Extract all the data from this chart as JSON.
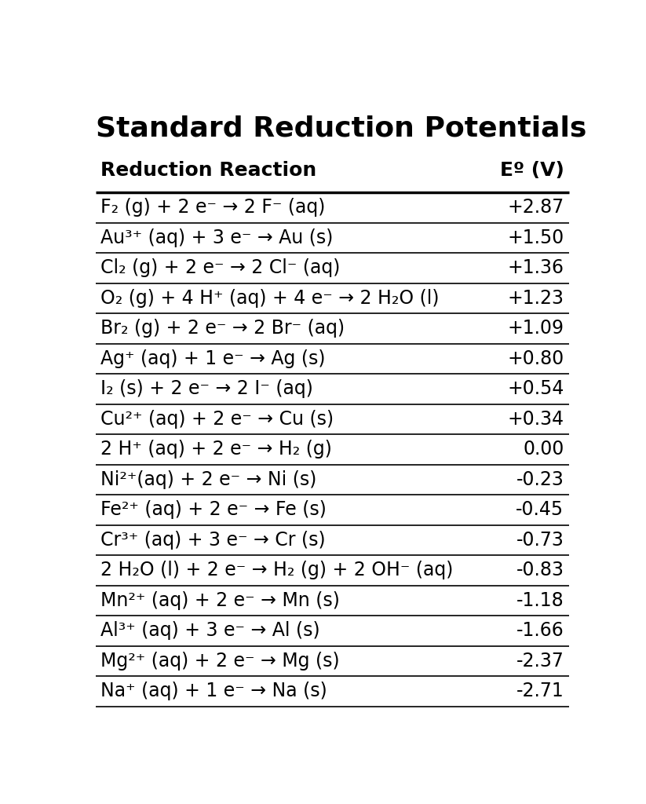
{
  "title": "Standard Reduction Potentials",
  "col_header_reaction": "Reduction Reaction",
  "col_header_potential": "Eº (V)",
  "rows": [
    {
      "reaction": "F₂ (g) + 2 e⁻ → 2 F⁻ (aq)",
      "potential": "+2.87"
    },
    {
      "reaction": "Au³⁺ (aq) + 3 e⁻ → Au (s)",
      "potential": "+1.50"
    },
    {
      "reaction": "Cl₂ (g) + 2 e⁻ → 2 Cl⁻ (aq)",
      "potential": "+1.36"
    },
    {
      "reaction": "O₂ (g) + 4 H⁺ (aq) + 4 e⁻ → 2 H₂O (l)",
      "potential": "+1.23"
    },
    {
      "reaction": "Br₂ (g) + 2 e⁻ → 2 Br⁻ (aq)",
      "potential": "+1.09"
    },
    {
      "reaction": "Ag⁺ (aq) + 1 e⁻ → Ag (s)",
      "potential": "+0.80"
    },
    {
      "reaction": "I₂ (s) + 2 e⁻ → 2 I⁻ (aq)",
      "potential": "+0.54"
    },
    {
      "reaction": "Cu²⁺ (aq) + 2 e⁻ → Cu (s)",
      "potential": "+0.34"
    },
    {
      "reaction": "2 H⁺ (aq) + 2 e⁻ → H₂ (g)",
      "potential": "0.00"
    },
    {
      "reaction": "Ni²⁺(aq) + 2 e⁻ → Ni (s)",
      "potential": "-0.23"
    },
    {
      "reaction": "Fe²⁺ (aq) + 2 e⁻ → Fe (s)",
      "potential": "-0.45"
    },
    {
      "reaction": "Cr³⁺ (aq) + 3 e⁻ → Cr (s)",
      "potential": "-0.73"
    },
    {
      "reaction": "2 H₂O (l) + 2 e⁻ → H₂ (g) + 2 OH⁻ (aq)",
      "potential": "-0.83"
    },
    {
      "reaction": "Mn²⁺ (aq) + 2 e⁻ → Mn (s)",
      "potential": "-1.18"
    },
    {
      "reaction": "Al³⁺ (aq) + 3 e⁻ → Al (s)",
      "potential": "-1.66"
    },
    {
      "reaction": "Mg²⁺ (aq) + 2 e⁻ → Mg (s)",
      "potential": "-2.37"
    },
    {
      "reaction": "Na⁺ (aq) + 1 e⁻ → Na (s)",
      "potential": "-2.71"
    }
  ],
  "background_color": "#ffffff",
  "text_color": "#000000",
  "line_color": "#000000",
  "title_fontsize": 26,
  "header_fontsize": 18,
  "row_fontsize": 17,
  "fig_width": 8.23,
  "fig_height": 10.24
}
